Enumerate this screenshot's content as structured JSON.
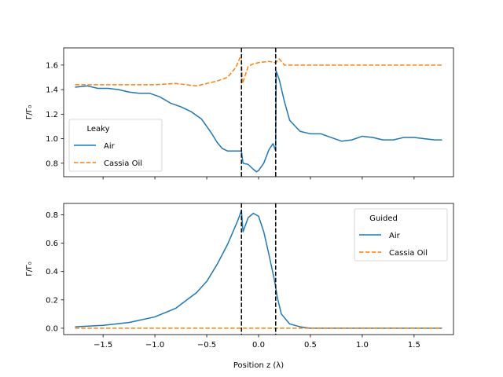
{
  "colors": {
    "air": "#1f77b4",
    "oil": "#ff7f0e",
    "vline": "#000000"
  },
  "chart_data": [
    {
      "type": "line",
      "ylabel": "Γ/Γ₀",
      "xlabel": "",
      "xlim": [
        -1.88,
        1.88
      ],
      "ylim": [
        0.69,
        1.74
      ],
      "yticks": [
        0.8,
        1.0,
        1.2,
        1.4,
        1.6
      ],
      "ytick_labels": [
        "0.8",
        "1.0",
        "1.2",
        "1.4",
        "1.6"
      ],
      "xticks": [
        -1.5,
        -1.0,
        -0.5,
        0.0,
        0.5,
        1.0,
        1.5
      ],
      "show_xtick_labels": false,
      "vlines": [
        -0.165,
        0.165
      ],
      "legend": {
        "title": "Leaky",
        "placement": "lower-left",
        "entries": [
          "Air",
          "Cassia Oil"
        ]
      },
      "series": [
        {
          "name": "Air",
          "style": "solid",
          "x": [
            -1.77,
            -1.65,
            -1.55,
            -1.45,
            -1.35,
            -1.25,
            -1.15,
            -1.05,
            -0.95,
            -0.85,
            -0.75,
            -0.65,
            -0.55,
            -0.45,
            -0.4,
            -0.35,
            -0.3,
            -0.25,
            -0.2,
            -0.165,
            -0.15,
            -0.1,
            -0.05,
            -0.02,
            0.0,
            0.05,
            0.1,
            0.14,
            0.165,
            0.17,
            0.2,
            0.25,
            0.3,
            0.4,
            0.5,
            0.6,
            0.7,
            0.8,
            0.9,
            1.0,
            1.1,
            1.2,
            1.3,
            1.4,
            1.5,
            1.6,
            1.7,
            1.77
          ],
          "y": [
            1.42,
            1.43,
            1.41,
            1.41,
            1.4,
            1.38,
            1.37,
            1.37,
            1.34,
            1.29,
            1.26,
            1.22,
            1.16,
            1.04,
            0.97,
            0.92,
            0.9,
            0.9,
            0.9,
            0.9,
            0.8,
            0.79,
            0.75,
            0.73,
            0.74,
            0.8,
            0.91,
            0.96,
            0.9,
            1.55,
            1.48,
            1.3,
            1.15,
            1.06,
            1.04,
            1.04,
            1.01,
            0.98,
            0.99,
            1.02,
            1.01,
            0.99,
            0.99,
            1.01,
            1.01,
            1.0,
            0.99,
            0.99
          ]
        },
        {
          "name": "Cassia Oil",
          "style": "dashed",
          "x": [
            -1.77,
            -1.6,
            -1.4,
            -1.2,
            -1.0,
            -0.8,
            -0.6,
            -0.4,
            -0.3,
            -0.22,
            -0.18,
            -0.165,
            -0.155,
            -0.1,
            -0.05,
            0.0,
            0.1,
            0.165,
            0.2,
            0.25,
            0.35,
            0.5,
            0.7,
            0.9,
            1.1,
            1.3,
            1.5,
            1.7,
            1.77
          ],
          "y": [
            1.44,
            1.44,
            1.44,
            1.44,
            1.44,
            1.45,
            1.43,
            1.47,
            1.5,
            1.58,
            1.66,
            1.64,
            1.45,
            1.59,
            1.61,
            1.62,
            1.63,
            1.62,
            1.65,
            1.6,
            1.6,
            1.6,
            1.6,
            1.6,
            1.6,
            1.6,
            1.6,
            1.6,
            1.6
          ]
        }
      ]
    },
    {
      "type": "line",
      "ylabel": "Γ/Γ₀",
      "xlabel": "Position z (λ)",
      "xlim": [
        -1.88,
        1.88
      ],
      "ylim": [
        -0.045,
        0.88
      ],
      "yticks": [
        0.0,
        0.2,
        0.4,
        0.6,
        0.8
      ],
      "ytick_labels": [
        "0.0",
        "0.2",
        "0.4",
        "0.6",
        "0.8"
      ],
      "xticks": [
        -1.5,
        -1.0,
        -0.5,
        0.0,
        0.5,
        1.0,
        1.5
      ],
      "xtick_labels": [
        "−1.5",
        "−1.0",
        "−0.5",
        "0.0",
        "0.5",
        "1.0",
        "1.5"
      ],
      "show_xtick_labels": true,
      "vlines": [
        -0.165,
        0.165
      ],
      "legend": {
        "title": "Guided",
        "placement": "upper-right",
        "entries": [
          "Air",
          "Cassia Oil"
        ]
      },
      "series": [
        {
          "name": "Air",
          "style": "solid",
          "x": [
            -1.77,
            -1.5,
            -1.25,
            -1.0,
            -0.8,
            -0.6,
            -0.5,
            -0.4,
            -0.3,
            -0.2,
            -0.165,
            -0.15,
            -0.1,
            -0.05,
            0.0,
            0.05,
            0.1,
            0.15,
            0.165,
            0.18,
            0.22,
            0.3,
            0.4,
            0.5,
            0.7,
            1.0,
            1.5,
            1.77
          ],
          "y": [
            0.01,
            0.02,
            0.04,
            0.08,
            0.14,
            0.25,
            0.33,
            0.45,
            0.59,
            0.76,
            0.83,
            0.68,
            0.78,
            0.81,
            0.79,
            0.68,
            0.52,
            0.35,
            0.29,
            0.22,
            0.1,
            0.03,
            0.01,
            0.0,
            0.0,
            0.0,
            0.0,
            0.0
          ]
        },
        {
          "name": "Cassia Oil",
          "style": "dashed",
          "x": [
            -1.77,
            -1.0,
            0.0,
            1.0,
            1.77
          ],
          "y": [
            0.0,
            0.0,
            0.0,
            0.0,
            0.0
          ]
        }
      ]
    }
  ]
}
